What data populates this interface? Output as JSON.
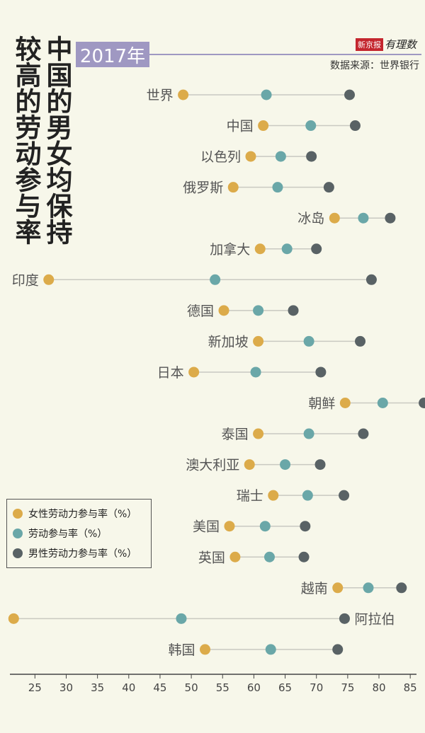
{
  "title": {
    "line1": "中国的男女均保持",
    "line2": "较高的劳动参与率"
  },
  "year": "2017年",
  "brand": {
    "tag": "新京报",
    "name": "有理数"
  },
  "source": "数据来源：世界银行",
  "colors": {
    "female": "#dcab4a",
    "overall": "#6aa7a8",
    "male": "#596265",
    "line": "#c9c9c1",
    "axis": "#444444",
    "text": "#555555"
  },
  "chart_data": {
    "type": "dumbbell",
    "xlim": [
      21,
      86
    ],
    "xticks": [
      25,
      30,
      35,
      40,
      45,
      50,
      55,
      60,
      65,
      70,
      75,
      80,
      85
    ],
    "legend": [
      "女性劳动力参与率（%）",
      "劳动参与率（%）",
      "男性劳动力参与率（%）"
    ],
    "categories": [
      "世界",
      "中国",
      "以色列",
      "俄罗斯",
      "冰岛",
      "加拿大",
      "印度",
      "德国",
      "新加坡",
      "日本",
      "朝鲜",
      "泰国",
      "澳大利亚",
      "瑞士",
      "美国",
      "英国",
      "越南",
      "阿拉伯",
      "韩国"
    ],
    "series": [
      {
        "name": "女性劳动力参与率（%）",
        "values": [
          48.7,
          61.5,
          59.5,
          56.7,
          72.9,
          61.0,
          27.2,
          55.2,
          60.7,
          50.4,
          74.6,
          60.7,
          59.3,
          63.1,
          56.1,
          57.0,
          73.4,
          21.6,
          52.2
        ]
      },
      {
        "name": "劳动参与率（%）",
        "values": [
          62.0,
          69.1,
          64.3,
          63.8,
          77.5,
          65.3,
          53.8,
          60.7,
          68.8,
          60.3,
          80.6,
          68.8,
          65.0,
          68.6,
          61.8,
          62.5,
          78.3,
          48.4,
          62.7
        ]
      },
      {
        "name": "男性劳动力参与率（%）",
        "values": [
          75.3,
          76.2,
          69.2,
          72.0,
          81.8,
          70.0,
          78.8,
          66.3,
          77.0,
          70.7,
          87.2,
          77.5,
          70.6,
          74.4,
          68.2,
          68.0,
          83.6,
          74.5,
          73.4
        ]
      }
    ],
    "label_side": [
      "left",
      "left",
      "left",
      "left",
      "left",
      "left",
      "left",
      "left",
      "left",
      "left",
      "left",
      "left",
      "left",
      "left",
      "left",
      "left",
      "left",
      "right",
      "left"
    ]
  }
}
